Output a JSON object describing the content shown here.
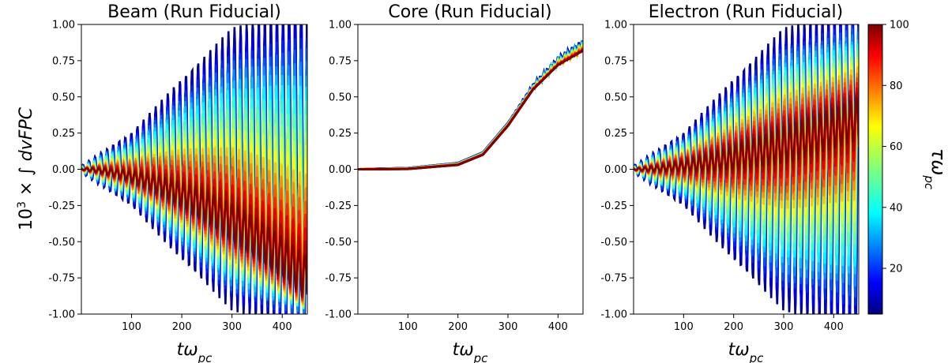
{
  "chart_data": {
    "type": "line",
    "colormap": "jet",
    "x_range": [
      0,
      450
    ],
    "y_range": [
      -1.0,
      1.0
    ],
    "x_ticks": [
      "100",
      "200",
      "300",
      "400"
    ],
    "y_ticks": [
      "1.00",
      "0.75",
      "0.50",
      "0.25",
      "0.00",
      "-0.25",
      "-0.50",
      "-0.75",
      "-1.00"
    ],
    "ylabel": {
      "prefix": "10",
      "exp": "3",
      "rest": " × ∫ dvFPC"
    },
    "xlabel": {
      "main": "tω",
      "sub": "pc"
    },
    "panels": [
      {
        "title": "Beam (Run Fiducial)",
        "description": "oscillating curves; envelope grows, later windows (high tau) drift negative",
        "envelope_points": [
          [
            0,
            0.02
          ],
          [
            100,
            0.22
          ],
          [
            200,
            0.55
          ],
          [
            300,
            0.85
          ],
          [
            450,
            1.0
          ]
        ],
        "center_trend_by_tau": [
          [
            10,
            0.0
          ],
          [
            40,
            -0.2
          ],
          [
            70,
            -0.5
          ],
          [
            100,
            -0.75
          ]
        ]
      },
      {
        "title": "Core (Run Fiducial)",
        "description": "smooth monotonic rise, all tau curves overlap",
        "points": [
          [
            0,
            0.0
          ],
          [
            100,
            0.002
          ],
          [
            200,
            0.03
          ],
          [
            250,
            0.1
          ],
          [
            300,
            0.3
          ],
          [
            350,
            0.55
          ],
          [
            400,
            0.72
          ],
          [
            450,
            0.82
          ]
        ]
      },
      {
        "title": "Electron (Run Fiducial)",
        "description": "oscillating curves; envelope grows, later windows (high tau) drift positive",
        "envelope_points": [
          [
            0,
            0.02
          ],
          [
            100,
            0.22
          ],
          [
            200,
            0.55
          ],
          [
            300,
            0.85
          ],
          [
            450,
            1.0
          ]
        ],
        "center_trend_by_tau": [
          [
            10,
            0.0
          ],
          [
            40,
            0.1
          ],
          [
            70,
            0.25
          ],
          [
            100,
            0.35
          ]
        ]
      }
    ],
    "colorbar": {
      "label": "τω",
      "label_sub": "pc",
      "range": [
        5,
        100
      ],
      "ticks": [
        "20",
        "40",
        "60",
        "80",
        "100"
      ]
    }
  }
}
